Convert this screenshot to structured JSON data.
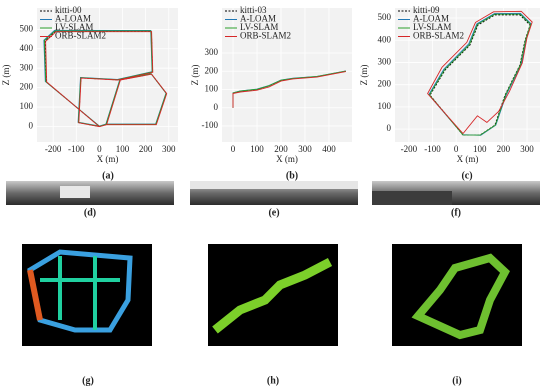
{
  "chart_data": [
    {
      "type": "line",
      "xlabel": "X (m)",
      "ylabel": "Z (m)",
      "xlim": [
        -270,
        340
      ],
      "ylim": [
        -80,
        610
      ],
      "xticks": [
        -200,
        -100,
        0,
        100,
        200,
        300
      ],
      "yticks": [
        0,
        100,
        200,
        300,
        400,
        500
      ],
      "series": [
        {
          "name": "kitti-00",
          "color": "#000000",
          "dash": true,
          "x": [
            0,
            -230,
            -235,
            -190,
            225,
            230,
            80,
            -80,
            -90,
            0,
            30,
            245,
            290,
            225,
            90,
            30
          ],
          "values": [
            0,
            230,
            440,
            490,
            490,
            280,
            240,
            250,
            20,
            0,
            10,
            10,
            170,
            270,
            240,
            10
          ]
        },
        {
          "name": "A-LOAM",
          "color": "#1f77b4",
          "x": [
            0,
            -234,
            -240,
            -194,
            222,
            228,
            78,
            -82,
            -92,
            0,
            28,
            243,
            288,
            223,
            88,
            28
          ],
          "values": [
            2,
            232,
            444,
            495,
            494,
            282,
            242,
            252,
            22,
            2,
            12,
            12,
            172,
            272,
            242,
            12
          ]
        },
        {
          "name": "LV-SLAM",
          "color": "#2ca02c",
          "x": [
            0,
            -232,
            -238,
            -192,
            223,
            229,
            79,
            -81,
            -91,
            0,
            29,
            244,
            289,
            224,
            89,
            29
          ],
          "values": [
            1,
            231,
            442,
            492,
            492,
            281,
            241,
            251,
            21,
            1,
            11,
            11,
            171,
            271,
            241,
            11
          ]
        },
        {
          "name": "ORB-SLAM2",
          "color": "#d62728",
          "x": [
            0,
            -228,
            -233,
            -188,
            226,
            231,
            81,
            -79,
            -89,
            0,
            31,
            246,
            291,
            226,
            91,
            31
          ],
          "values": [
            -1,
            229,
            438,
            488,
            488,
            279,
            239,
            249,
            19,
            -1,
            9,
            9,
            169,
            269,
            239,
            9
          ]
        }
      ]
    },
    {
      "type": "line",
      "xlabel": "X (m)",
      "ylabel": "Z (m)",
      "xlim": [
        -46,
        496
      ],
      "ylim": [
        -188,
        547
      ],
      "xticks": [
        0,
        100,
        200,
        300,
        400
      ],
      "yticks": [
        -100,
        0,
        100,
        200,
        300
      ],
      "series": [
        {
          "name": "kitti-03",
          "color": "#000000",
          "dash": true,
          "x": [
            0,
            0,
            30,
            100,
            150,
            200,
            250,
            350,
            470
          ],
          "values": [
            0,
            80,
            90,
            100,
            120,
            150,
            160,
            170,
            200
          ]
        },
        {
          "name": "A-LOAM",
          "color": "#1f77b4",
          "x": [
            0,
            0,
            30,
            100,
            150,
            200,
            250,
            350,
            470
          ],
          "values": [
            0,
            82,
            92,
            102,
            122,
            152,
            162,
            172,
            202
          ]
        },
        {
          "name": "LV-SLAM",
          "color": "#2ca02c",
          "x": [
            0,
            0,
            30,
            100,
            150,
            200,
            250,
            350,
            470
          ],
          "values": [
            0,
            81,
            91,
            101,
            121,
            151,
            161,
            171,
            201
          ]
        },
        {
          "name": "ORB-SLAM2",
          "color": "#d62728",
          "x": [
            0,
            0,
            30,
            100,
            150,
            200,
            250,
            350,
            470
          ],
          "values": [
            0,
            78,
            86,
            96,
            114,
            146,
            158,
            168,
            198
          ]
        }
      ]
    },
    {
      "type": "line",
      "xlabel": "X (m)",
      "ylabel": "Z (m)",
      "xlim": [
        -259,
        355
      ],
      "ylim": [
        -58,
        545
      ],
      "xticks": [
        -200,
        -100,
        0,
        100,
        200,
        300
      ],
      "yticks": [
        0,
        100,
        200,
        300,
        400,
        500
      ],
      "series": [
        {
          "name": "kitti-09",
          "color": "#000000",
          "dash": true,
          "x": [
            29,
            -111,
            -47,
            58,
            92,
            164,
            270,
            313,
            292,
            270,
            207,
            164,
            101,
            29
          ],
          "values": [
            -27,
            153,
            266,
            378,
            468,
            514,
            514,
            468,
            401,
            288,
            153,
            18,
            -27,
            -27
          ]
        },
        {
          "name": "A-LOAM",
          "color": "#1f77b4",
          "x": [
            29,
            -116,
            -52,
            53,
            88,
            162,
            272,
            317,
            297,
            275,
            212,
            168,
            104,
            29
          ],
          "values": [
            -25,
            155,
            270,
            383,
            474,
            520,
            521,
            474,
            405,
            290,
            154,
            18,
            -28,
            -25
          ]
        },
        {
          "name": "LV-SLAM",
          "color": "#2ca02c",
          "x": [
            29,
            -113,
            -49,
            56,
            90,
            163,
            271,
            315,
            294,
            272,
            209,
            166,
            102,
            29
          ],
          "values": [
            -26,
            154,
            268,
            380,
            471,
            517,
            517,
            471,
            403,
            289,
            153,
            18,
            -27,
            -26
          ]
        },
        {
          "name": "ORB-SLAM2",
          "color": "#d62728",
          "x": [
            29,
            -121,
            -60,
            45,
            82,
            158,
            276,
            322,
            300,
            280,
            226,
            180,
            130,
            90,
            29
          ],
          "values": [
            -20,
            160,
            278,
            390,
            480,
            528,
            530,
            482,
            412,
            298,
            170,
            80,
            30,
            60,
            -20
          ]
        }
      ]
    }
  ],
  "captions": [
    "(a)",
    "(b)",
    "(c)",
    "(d)",
    "(e)",
    "(f)",
    "(g)",
    "(h)",
    "(i)"
  ]
}
